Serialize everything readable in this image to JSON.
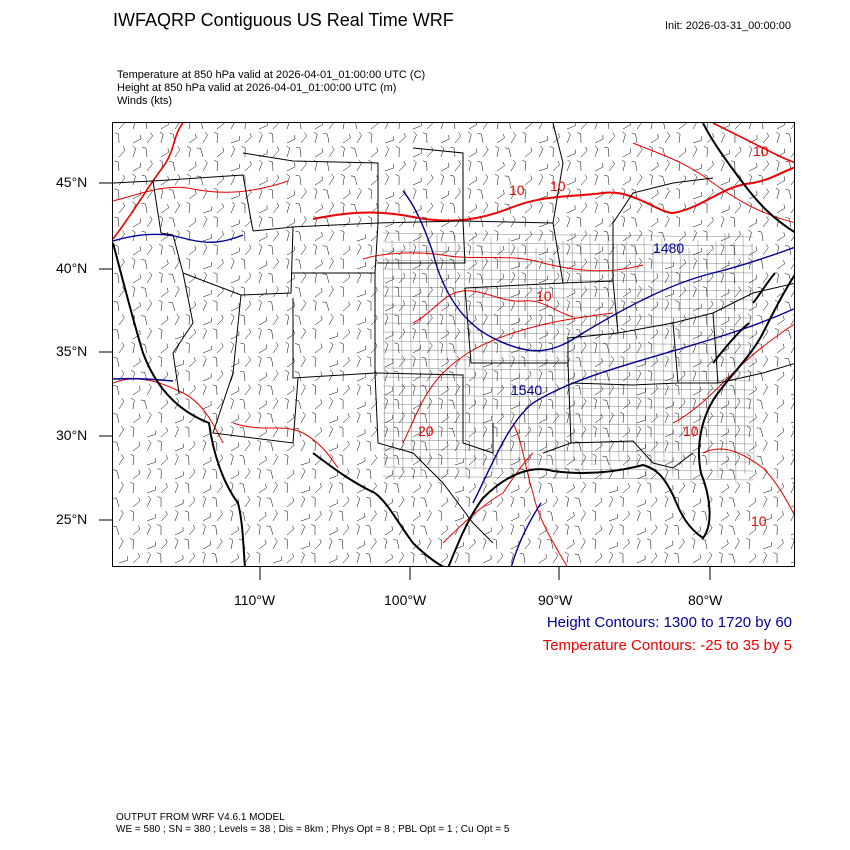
{
  "header": {
    "title": "IWFAQRP Contiguous US Real Time WRF",
    "init": "Init: 2026-03-31_00:00:00"
  },
  "subtitles": {
    "temperature": "Temperature at 850 hPa valid at 2026-04-01_01:00:00 UTC   (C)",
    "height": "Height at 850 hPa valid at 2026-04-01_01:00:00 UTC   (m)",
    "winds": "Winds   (kts)"
  },
  "axes": {
    "lat_labels": [
      "45°N",
      "40°N",
      "35°N",
      "30°N",
      "25°N"
    ],
    "lon_labels": [
      "110°W",
      "100°W",
      "90°W",
      "80°W"
    ]
  },
  "contour_labels": {
    "temperature": [
      "10",
      "10",
      "10",
      "20",
      "10",
      "10",
      "10"
    ],
    "height": [
      "1540",
      "1480"
    ]
  },
  "legend": {
    "height": "Height Contours: 1300 to 1720 by 60",
    "temperature": "Temperature Contours: -25 to 35 by 5"
  },
  "footer": {
    "line1": "OUTPUT FROM WRF V4.6.1 MODEL",
    "line2": "WE = 580 ; SN = 380 ; Levels = 38 ; Dis = 8km ; Phys Opt = 8 ; PBL Opt = 1 ; Cu Opt = 5"
  },
  "colors": {
    "height_contour": "#000099",
    "temperature_contour": "#ee0000",
    "borders": "#000000",
    "wind_barbs": "#000000"
  }
}
